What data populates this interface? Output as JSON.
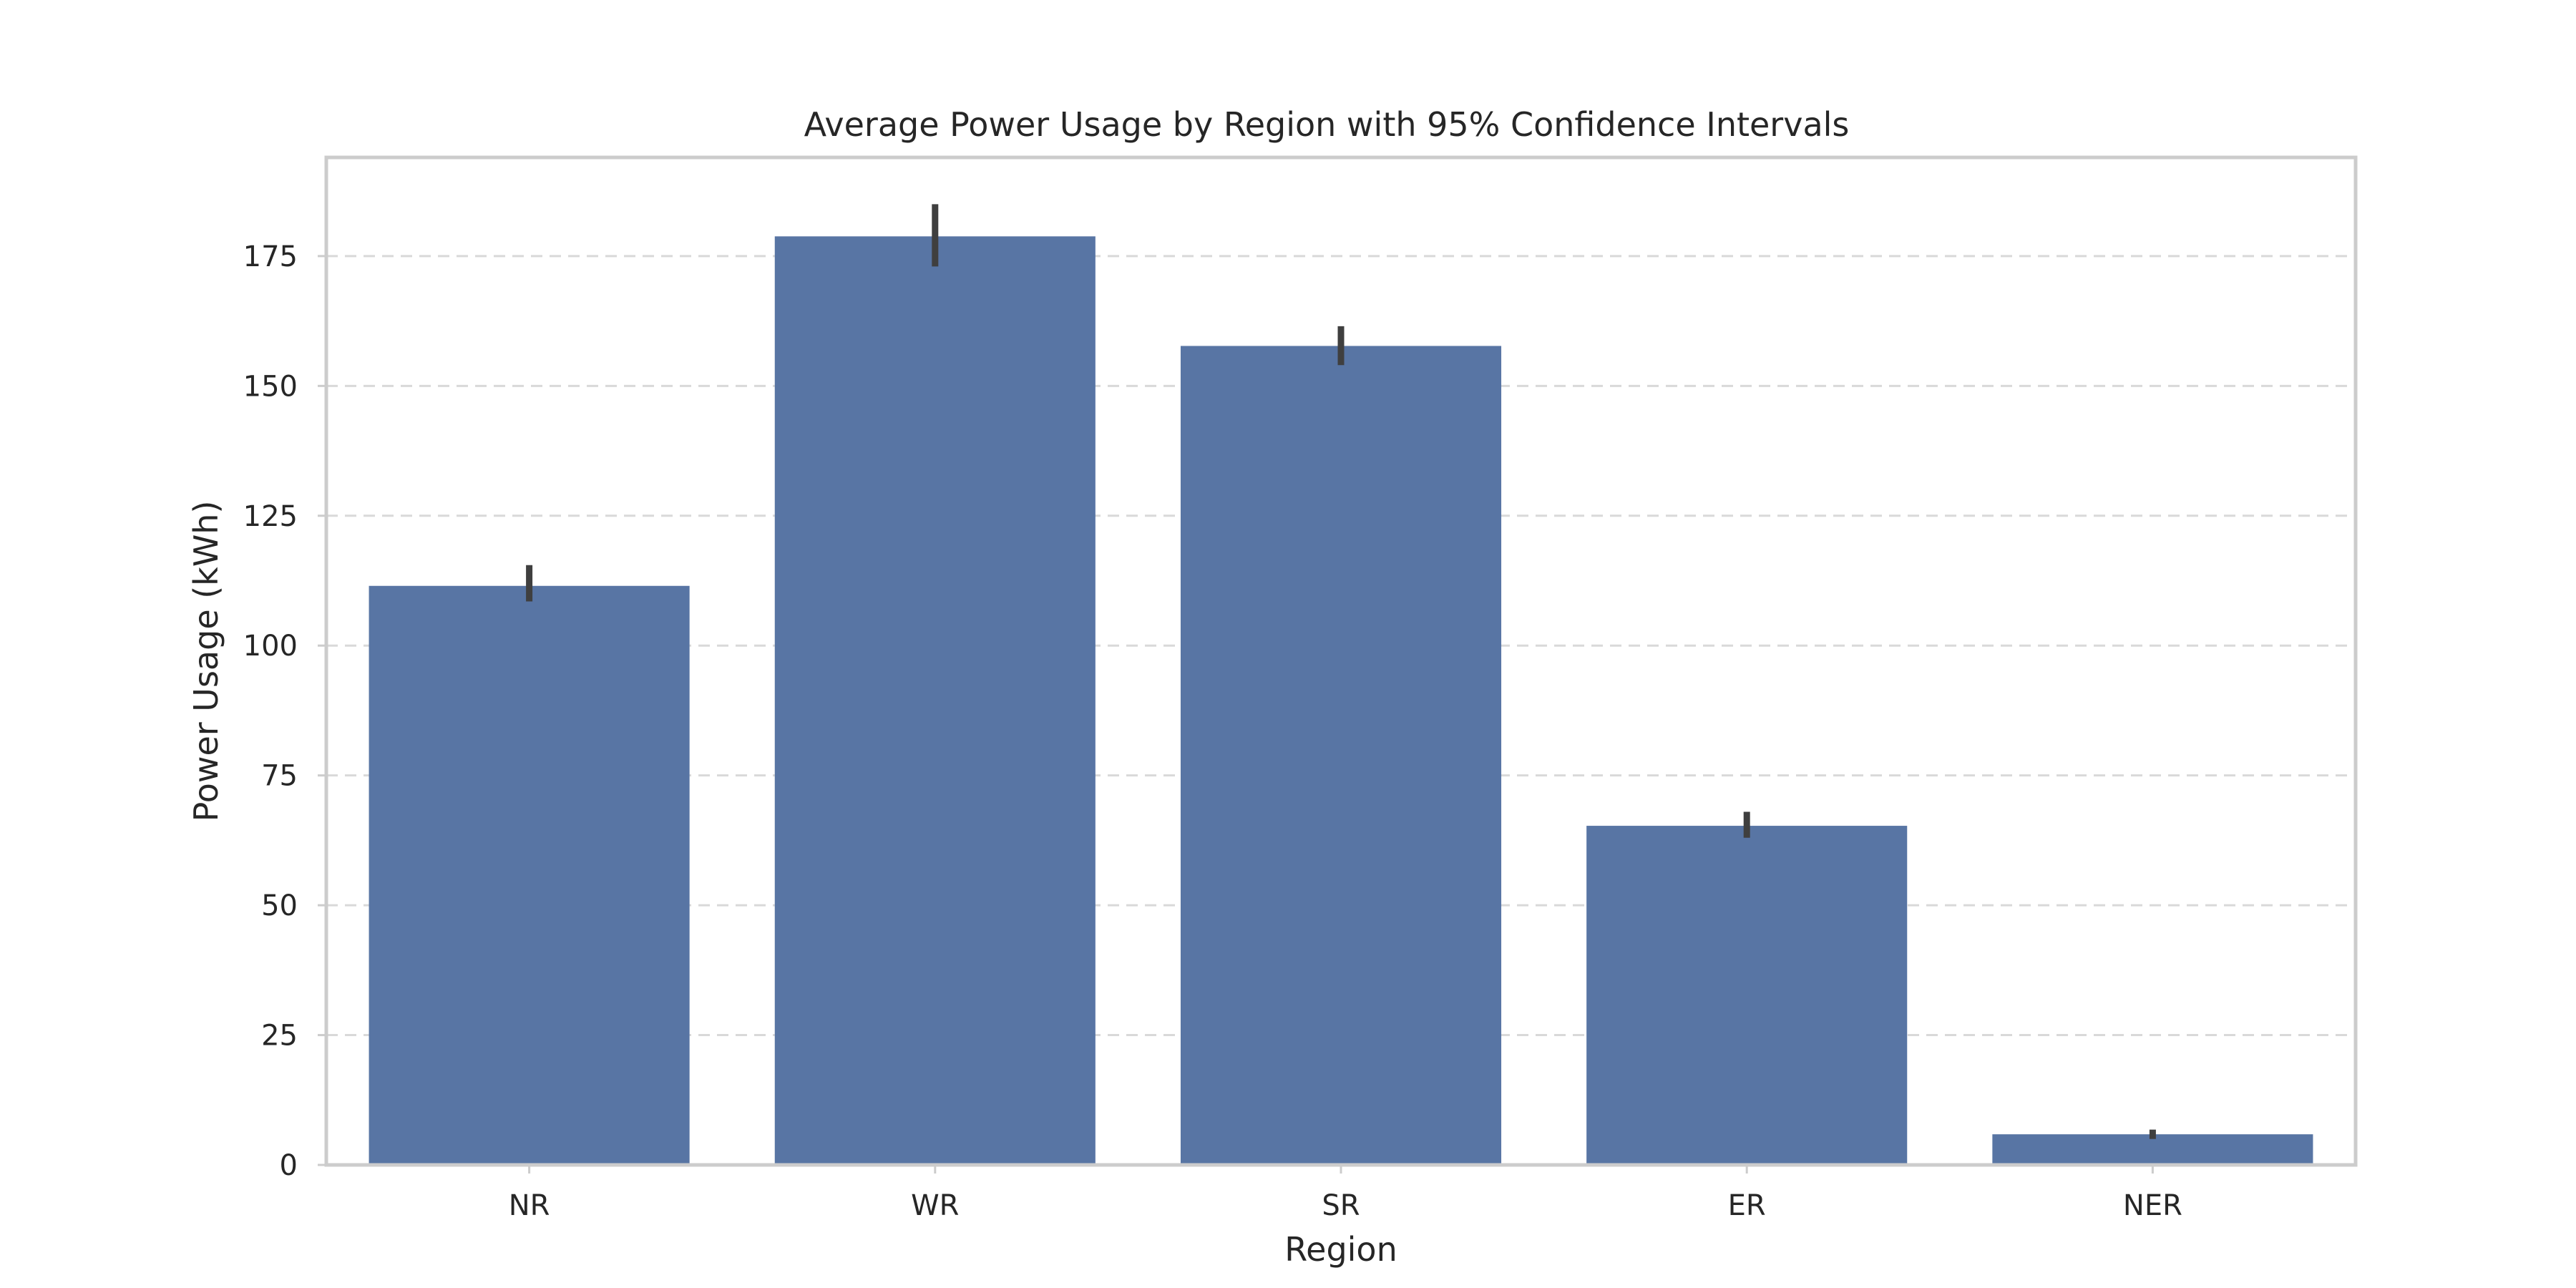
{
  "chart_data": {
    "type": "bar",
    "title": "Average Power Usage by Region with 95% Confidence Intervals",
    "xlabel": "Region",
    "ylabel": "Power Usage (kWh)",
    "categories": [
      "NR",
      "WR",
      "SR",
      "ER",
      "NER"
    ],
    "values": [
      111.5,
      178.8,
      157.7,
      65.3,
      5.9
    ],
    "ci_low": [
      108.5,
      173.0,
      154.0,
      63.0,
      5.0
    ],
    "ci_high": [
      115.5,
      185.0,
      161.5,
      68.0,
      6.8
    ],
    "ylim": [
      0,
      194
    ],
    "yticks": [
      0,
      25,
      50,
      75,
      100,
      125,
      150,
      175
    ],
    "grid": true,
    "grid_axis": "y",
    "grid_style": "dashed",
    "colors": {
      "bar": "#5875a4",
      "error_bar": "#3f3f3f",
      "grid": "#d9d9d9",
      "frame": "#cccccc",
      "text": "#262626"
    }
  }
}
